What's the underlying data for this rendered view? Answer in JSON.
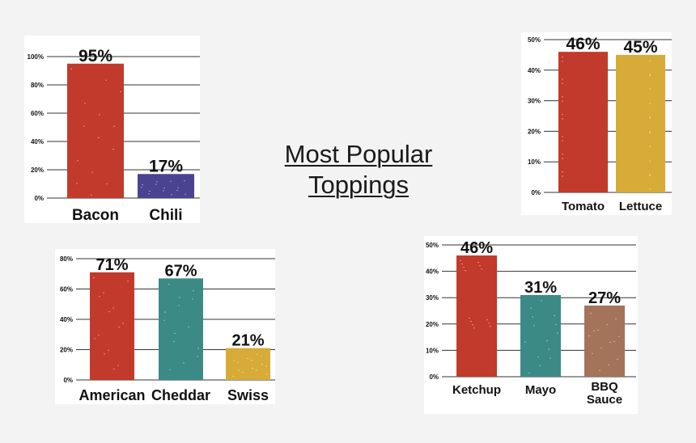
{
  "title": {
    "line1": "Most Popular",
    "line2": "Toppings"
  },
  "colors": {
    "red": "#c23a2b",
    "purple": "#4a4490",
    "gold": "#d7ab38",
    "teal": "#3c8a86",
    "brown": "#a3735a",
    "grid": "#333333",
    "text": "#111111"
  },
  "chart_data": [
    {
      "type": "bar",
      "categories": [
        "Bacon",
        "Chili"
      ],
      "values": [
        95,
        17
      ],
      "value_labels": [
        "95%",
        "17%"
      ],
      "colors": [
        "#c23a2b",
        "#4a4490"
      ],
      "ylim": [
        0,
        100
      ],
      "yticks": [
        "0%",
        "20%",
        "40%",
        "60%",
        "80%",
        "100%"
      ],
      "ytick_values": [
        0,
        20,
        40,
        60,
        80,
        100
      ],
      "grid": true
    },
    {
      "type": "bar",
      "categories": [
        "Tomato",
        "Lettuce"
      ],
      "values": [
        46,
        45
      ],
      "value_labels": [
        "46%",
        "45%"
      ],
      "colors": [
        "#c23a2b",
        "#d7ab38"
      ],
      "ylim": [
        0,
        50
      ],
      "yticks": [
        "0%",
        "10%",
        "20%",
        "30%",
        "40%",
        "50%"
      ],
      "ytick_values": [
        0,
        10,
        20,
        30,
        40,
        50
      ],
      "grid": true
    },
    {
      "type": "bar",
      "categories": [
        "American",
        "Cheddar",
        "Swiss"
      ],
      "values": [
        71,
        67,
        21
      ],
      "value_labels": [
        "71%",
        "67%",
        "21%"
      ],
      "colors": [
        "#c23a2b",
        "#3c8a86",
        "#d7ab38"
      ],
      "ylim": [
        0,
        80
      ],
      "yticks": [
        "0%",
        "20%",
        "40%",
        "60%",
        "80%"
      ],
      "ytick_values": [
        0,
        20,
        40,
        60,
        80
      ],
      "grid": true
    },
    {
      "type": "bar",
      "categories": [
        "Ketchup",
        "Mayo",
        "BBQ Sauce"
      ],
      "values": [
        46,
        31,
        27
      ],
      "value_labels": [
        "46%",
        "31%",
        "27%"
      ],
      "colors": [
        "#c23a2b",
        "#3c8a86",
        "#a3735a"
      ],
      "ylim": [
        0,
        50
      ],
      "yticks": [
        "0%",
        "10%",
        "20%",
        "30%",
        "40%",
        "50%"
      ],
      "ytick_values": [
        0,
        10,
        20,
        30,
        40,
        50
      ],
      "grid": true
    }
  ]
}
